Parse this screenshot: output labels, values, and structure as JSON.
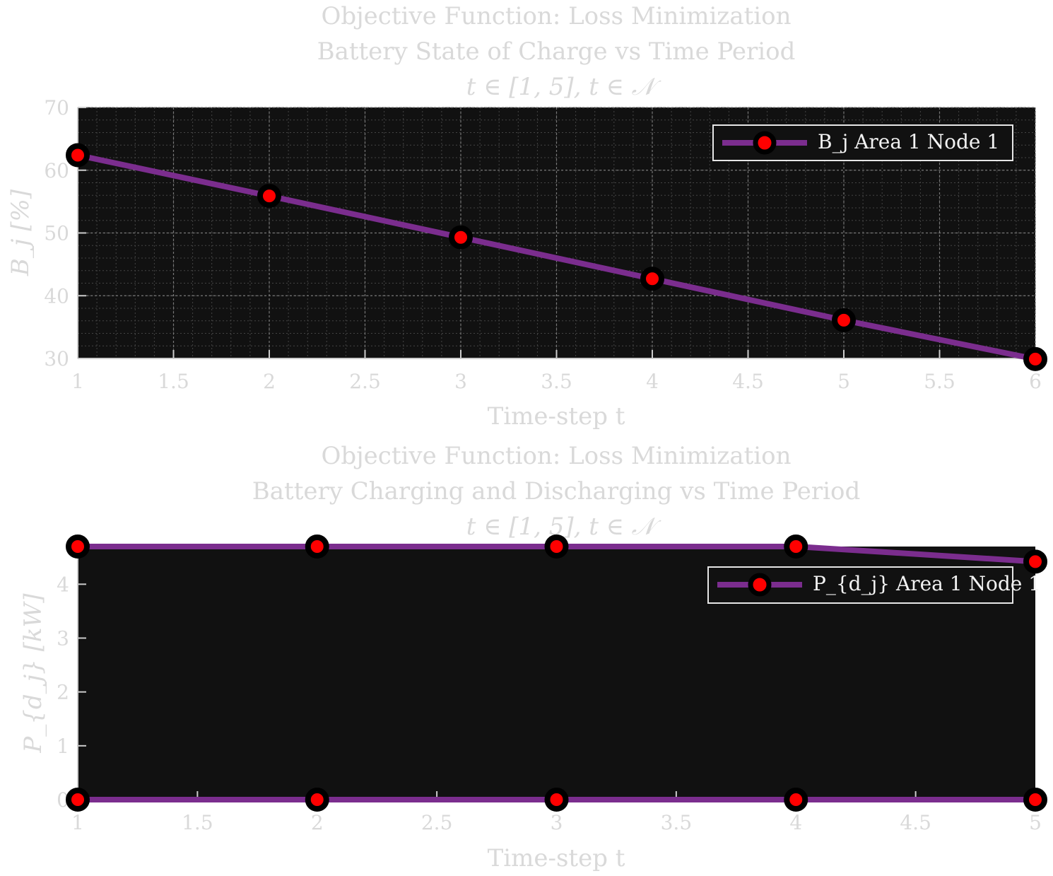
{
  "colors": {
    "axes_background": "#111111",
    "grid": "#777777",
    "text": "#d9d9d9",
    "line": "#7b2d8e",
    "marker_face": "#ff0000",
    "marker_edge": "#000000",
    "legend_border": "#e6e6e6"
  },
  "chart_data": [
    {
      "type": "line",
      "title_lines": [
        "Objective Function: Loss Minimization",
        "Battery State of Charge vs Time Period",
        "t ∈ [1, 5], t ∈ 𝒩"
      ],
      "xlabel": "Time-step t",
      "ylabel": "B_j [%]",
      "xlim": [
        1,
        6
      ],
      "ylim": [
        30,
        70
      ],
      "xticks": [
        "1",
        "1.5",
        "2",
        "2.5",
        "3",
        "3.5",
        "4",
        "4.5",
        "5",
        "5.5",
        "6"
      ],
      "yticks": [
        "30",
        "40",
        "50",
        "60",
        "70"
      ],
      "grid": true,
      "minor_grid": true,
      "legend_position": "top-right",
      "series": [
        {
          "name": "B_j Area 1 Node 1",
          "x": [
            1,
            2,
            3,
            4,
            5,
            6
          ],
          "y": [
            62.4,
            55.9,
            49.3,
            42.7,
            36.1,
            29.9
          ]
        }
      ]
    },
    {
      "type": "line",
      "title_lines": [
        "Objective Function: Loss Minimization",
        "Battery Charging and Discharging vs Time Period",
        "t ∈ [1, 5], t ∈ 𝒩"
      ],
      "xlabel": "Time-step t",
      "ylabel": "P_{d_j} [kW]",
      "xlim": [
        1,
        5
      ],
      "ylim": [
        0,
        4.7
      ],
      "xticks": [
        "1",
        "1.5",
        "2",
        "2.5",
        "3",
        "3.5",
        "4",
        "4.5",
        "5"
      ],
      "yticks": [
        "0",
        "1",
        "2",
        "3",
        "4"
      ],
      "grid": false,
      "legend_position": "top-right",
      "series": [
        {
          "name": "P_{d_j} Area 1 Node 1",
          "x": [
            1,
            2,
            3,
            4,
            5
          ],
          "y": [
            4.7,
            4.7,
            4.7,
            4.7,
            4.42
          ]
        },
        {
          "x": [
            1,
            2,
            3,
            4,
            5
          ],
          "y": [
            0,
            0,
            0,
            0,
            0
          ]
        }
      ]
    }
  ]
}
